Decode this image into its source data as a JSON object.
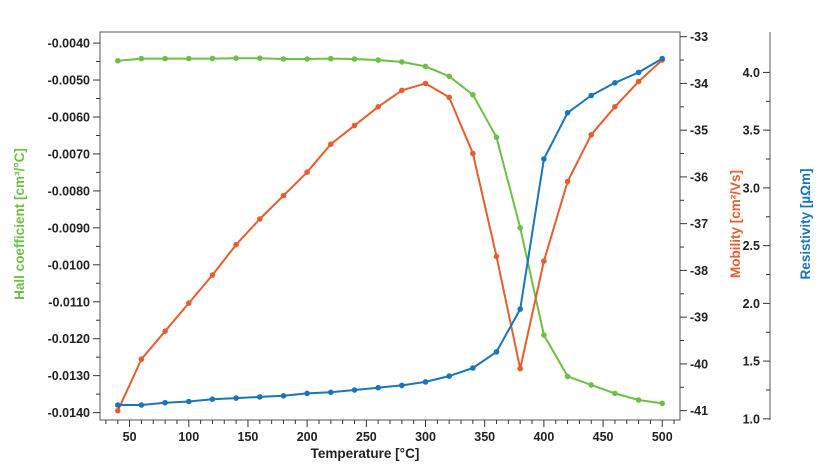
{
  "chart_data": {
    "type": "line",
    "title": "",
    "xlabel": "Temperature [°C]",
    "xlim": [
      25,
      515
    ],
    "x_ticks": [
      50,
      100,
      150,
      200,
      250,
      300,
      350,
      400,
      450,
      500
    ],
    "x": [
      40,
      60,
      80,
      100,
      120,
      140,
      160,
      180,
      200,
      220,
      240,
      260,
      280,
      300,
      320,
      340,
      360,
      380,
      400,
      420,
      440,
      460,
      480,
      500
    ],
    "axes": {
      "left": {
        "label": "Hall coefficient [cm³/°C]",
        "color": "#6dbf45",
        "ylim": [
          -0.0142,
          -0.0037
        ],
        "ticks": [
          -0.004,
          -0.005,
          -0.006,
          -0.007,
          -0.008,
          -0.009,
          -0.01,
          -0.011,
          -0.012,
          -0.013,
          -0.014
        ],
        "tick_labels": [
          "-0.0040",
          "-0.0050",
          "-0.0060",
          "-0.0070",
          "-0.0080",
          "-0.0090",
          "-0.0100",
          "-0.0110",
          "-0.0120",
          "-0.0130",
          "-0.0140"
        ]
      },
      "right1": {
        "label": "Mobility [cm²/Vs]",
        "color": "#e35f2f",
        "ylim": [
          -41.2,
          -32.9
        ],
        "ticks": [
          -33,
          -34,
          -35,
          -36,
          -37,
          -38,
          -39,
          -40,
          -41
        ],
        "tick_labels": [
          "-33",
          "-34",
          "-35",
          "-36",
          "-37",
          "-38",
          "-39",
          "-40",
          "-41"
        ]
      },
      "right2": {
        "label": "Resistivity [µΩm]",
        "color": "#1a75b9",
        "ylim": [
          0.99,
          4.35
        ],
        "ticks": [
          1.0,
          1.5,
          2.0,
          2.5,
          3.0,
          3.5,
          4.0
        ],
        "tick_labels": [
          "1.0",
          "1.5",
          "2.0",
          "2.5",
          "3.0",
          "3.5",
          "4.0"
        ]
      }
    },
    "series": [
      {
        "axis": "left",
        "color": "#6dbf45",
        "values": [
          -0.00448,
          -0.00442,
          -0.00442,
          -0.00442,
          -0.00442,
          -0.00441,
          -0.00441,
          -0.00443,
          -0.00443,
          -0.00442,
          -0.00443,
          -0.00446,
          -0.00451,
          -0.00463,
          -0.0049,
          -0.0054,
          -0.00655,
          -0.009,
          -0.0119,
          -0.01302,
          -0.01325,
          -0.01348,
          -0.01366,
          -0.01375
        ]
      },
      {
        "axis": "right1",
        "color": "#e35f2f",
        "values": [
          -41.0,
          -39.9,
          -39.3,
          -38.7,
          -38.1,
          -37.45,
          -36.9,
          -36.4,
          -35.9,
          -35.3,
          -34.9,
          -34.5,
          -34.15,
          -34.0,
          -34.3,
          -35.5,
          -37.7,
          -40.1,
          -37.8,
          -36.1,
          -35.1,
          -34.5,
          -33.96,
          -33.5
        ]
      },
      {
        "axis": "right2",
        "color": "#1a75b9",
        "values": [
          1.12,
          1.12,
          1.14,
          1.15,
          1.17,
          1.18,
          1.19,
          1.2,
          1.22,
          1.23,
          1.25,
          1.27,
          1.29,
          1.32,
          1.37,
          1.44,
          1.58,
          1.95,
          3.25,
          3.65,
          3.8,
          3.91,
          4.0,
          4.12
        ]
      }
    ],
    "grid": false,
    "legend": "none"
  }
}
